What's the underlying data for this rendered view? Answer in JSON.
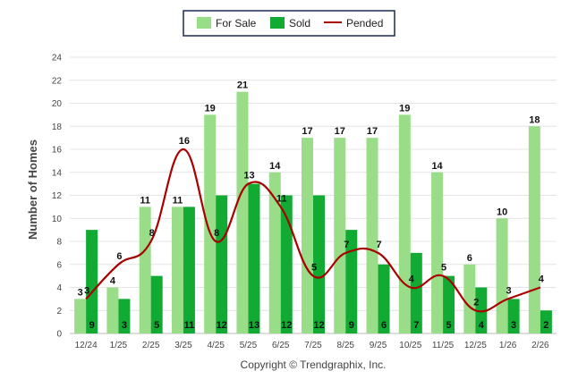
{
  "chart_data": {
    "type": "bar",
    "categories": [
      "12/24",
      "1/25",
      "2/25",
      "3/25",
      "4/25",
      "5/25",
      "6/25",
      "7/25",
      "8/25",
      "9/25",
      "10/25",
      "11/25",
      "12/25",
      "1/26",
      "2/26"
    ],
    "series": [
      {
        "name": "For Sale",
        "kind": "bar",
        "color": "#99dd88",
        "values": [
          3,
          4,
          11,
          11,
          19,
          21,
          14,
          17,
          17,
          17,
          19,
          14,
          6,
          10,
          18
        ]
      },
      {
        "name": "Sold",
        "kind": "bar",
        "color": "#11aa33",
        "values": [
          9,
          3,
          5,
          11,
          12,
          13,
          12,
          12,
          9,
          6,
          7,
          5,
          4,
          3,
          2
        ]
      },
      {
        "name": "Pended",
        "kind": "line",
        "color": "#aa0000",
        "values": [
          3,
          6,
          8,
          16,
          8,
          13,
          11,
          5,
          7,
          7,
          4,
          5,
          2,
          3,
          4
        ]
      }
    ],
    "title": "",
    "xlabel": "",
    "ylabel": "Number of Homes",
    "ylim": [
      0,
      24
    ],
    "yticks": [
      0,
      2,
      4,
      6,
      8,
      10,
      12,
      14,
      16,
      18,
      20,
      22,
      24
    ],
    "grid": true,
    "legend_position": "top-center"
  },
  "legend": {
    "for_sale": "For Sale",
    "sold": "Sold",
    "pended": "Pended"
  },
  "footer": {
    "copyright": "Copyright © Trendgraphix, Inc."
  }
}
